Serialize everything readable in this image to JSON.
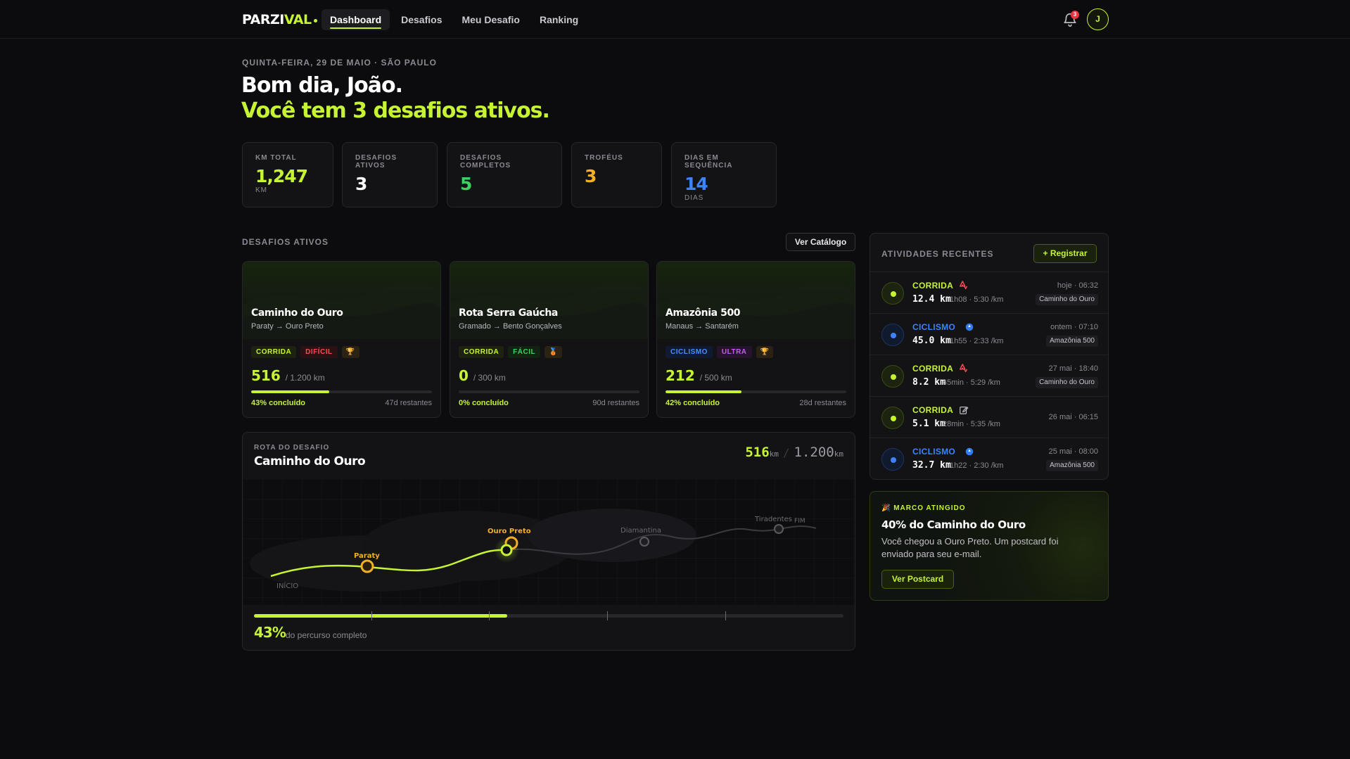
{
  "header": {
    "logo_a": "PARZI",
    "logo_b": "VAL",
    "nav": [
      "Dashboard",
      "Desafios",
      "Meu Desafio",
      "Ranking"
    ],
    "notification_count": "3",
    "avatar_initial": "J"
  },
  "greeting": {
    "date": "QUINTA-FEIRA, 29 DE MAIO · SÃO PAULO",
    "line1": "Bom dia, João.",
    "line2": "Você tem 3 desafios ativos."
  },
  "stats": [
    {
      "label": "KM TOTAL",
      "value": "1,247",
      "unit": "KM",
      "color": "#c6f432"
    },
    {
      "label": "DESAFIOS ATIVOS",
      "value": "3",
      "unit": "",
      "color": "#ffffff"
    },
    {
      "label": "DESAFIOS COMPLETOS",
      "value": "5",
      "unit": "",
      "color": "#3ed060"
    },
    {
      "label": "TROFÉUS",
      "value": "3",
      "unit": "",
      "color": "#f2b122"
    },
    {
      "label": "DIAS EM SEQUÊNCIA",
      "value": "14",
      "unit": "DIAS",
      "color": "#3d82ff"
    }
  ],
  "active_section": {
    "title": "DESAFIOS ATIVOS",
    "catalog_button": "Ver Catálogo"
  },
  "challenges": [
    {
      "name": "Caminho do Ouro",
      "route": "Paraty → Ouro Preto",
      "type": "CORRIDA",
      "type_class": "run",
      "level": "DIFÍCIL",
      "level_class": "hard",
      "trophy": "🏆",
      "done": "516",
      "total": "/ 1.200 km",
      "fraction": 0.43,
      "pct": "43% concluído",
      "remaining": "47d restantes"
    },
    {
      "name": "Rota Serra Gaúcha",
      "route": "Gramado → Bento Gonçalves",
      "type": "CORRIDA",
      "type_class": "run",
      "level": "FÁCIL",
      "level_class": "easy",
      "trophy": "🥉",
      "done": "0",
      "total": "/ 300 km",
      "fraction": 0.0,
      "pct": "0% concluído",
      "remaining": "90d restantes"
    },
    {
      "name": "Amazônia 500",
      "route": "Manaus → Santarém",
      "type": "CICLISMO",
      "type_class": "bike",
      "level": "ULTRA",
      "level_class": "ultra",
      "trophy": "🏆",
      "done": "212",
      "total": "/ 500 km",
      "fraction": 0.42,
      "pct": "42% concluído",
      "remaining": "28d restantes"
    }
  ],
  "route_panel": {
    "label": "ROTA DO DESAFIO",
    "title": "Caminho do Ouro",
    "current": "516",
    "unit": "km",
    "sep": "/",
    "total": "1.200",
    "fraction": 0.43,
    "percent": "43%",
    "percent_text": "do percurso completo",
    "waypoints": [
      "INÍCIO",
      "Paraty",
      "Ouro Preto",
      "Diamantina",
      "Tiradentes",
      "FIM"
    ]
  },
  "activities": {
    "title": "ATIVIDADES RECENTES",
    "register_button": "+ Registrar",
    "items": [
      {
        "type": "CORRIDA",
        "cls": "run",
        "icon": "strava-icon",
        "dist": "12.4 km",
        "meta": "1h08 · 5:30 /km",
        "when": "hoje · 06:32",
        "chip": "Caminho do Ouro"
      },
      {
        "type": "CICLISMO",
        "cls": "bike",
        "icon": "garmin-icon",
        "dist": "45.0 km",
        "meta": "1h55 · 2:33 /km",
        "when": "ontem · 07:10",
        "chip": "Amazônia 500"
      },
      {
        "type": "CORRIDA",
        "cls": "run",
        "icon": "strava-icon",
        "dist": "8.2 km",
        "meta": "45min · 5:29 /km",
        "when": "27 mai · 18:40",
        "chip": "Caminho do Ouro"
      },
      {
        "type": "CORRIDA",
        "cls": "run",
        "icon": "edit-icon",
        "dist": "5.1 km",
        "meta": "28min · 5:35 /km",
        "when": "26 mai · 06:15",
        "chip": ""
      },
      {
        "type": "CICLISMO",
        "cls": "bike",
        "icon": "garmin-icon",
        "dist": "32.7 km",
        "meta": "1h22 · 2:30 /km",
        "when": "25 mai · 08:00",
        "chip": "Amazônia 500"
      }
    ]
  },
  "milestone": {
    "label": "🎉 MARCO ATINGIDO",
    "title": "40% do Caminho do Ouro",
    "text": "Você chegou a Ouro Preto. Um postcard foi enviado para seu e-mail.",
    "button": "Ver Postcard"
  }
}
